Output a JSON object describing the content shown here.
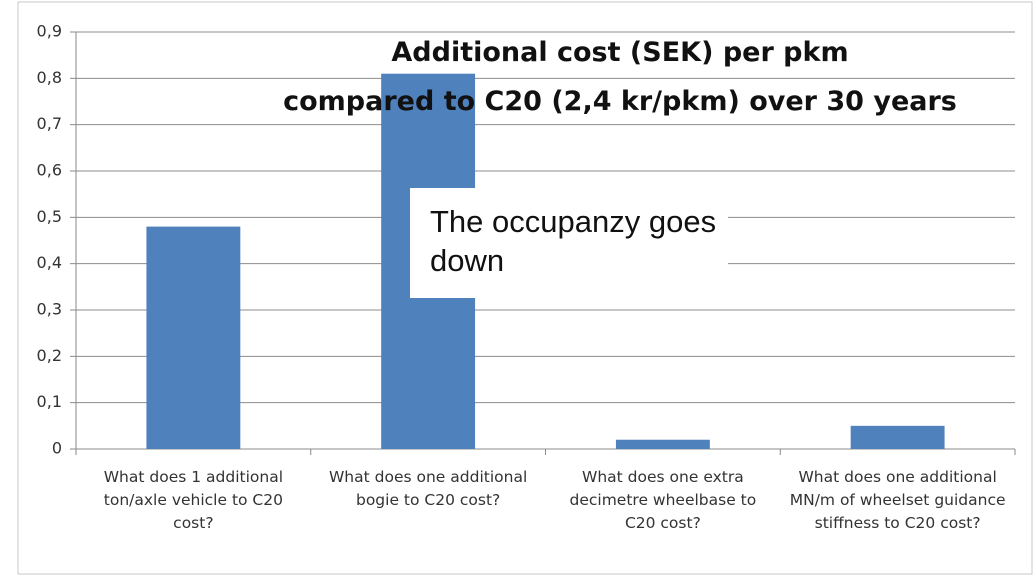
{
  "chart_data": {
    "type": "bar",
    "title": [
      "Additional cost (SEK) per pkm",
      "compared to C20 (2,4 kr/pkm) over 30 years"
    ],
    "annotation": "The occupanzy goes down",
    "categories": [
      "What does 1 additional ton/axle vehicle to C20 cost?",
      "What does one additional bogie to C20 cost?",
      "What does one extra decimetre wheelbase to C20 cost?",
      "What does one additional MN/m of wheelset guidance stiffness to C20 cost?"
    ],
    "values": [
      0.48,
      0.81,
      0.02,
      0.05
    ],
    "color": "#4f81bd",
    "ylim": [
      0,
      0.9
    ],
    "yticks": [
      0,
      {
        "value": 0.1,
        "label": "0,1"
      },
      {
        "value": 0.2,
        "label": "0,2"
      },
      {
        "value": 0.3,
        "label": "0,3"
      },
      {
        "value": 0.4,
        "label": "0,4"
      },
      {
        "value": 0.5,
        "label": "0,5"
      },
      {
        "value": 0.6,
        "label": "0,6"
      },
      {
        "value": 0.7,
        "label": "0,7"
      },
      {
        "value": 0.8,
        "label": "0,8"
      },
      {
        "value": 0.9,
        "label": "0,9"
      }
    ],
    "grid": true
  }
}
